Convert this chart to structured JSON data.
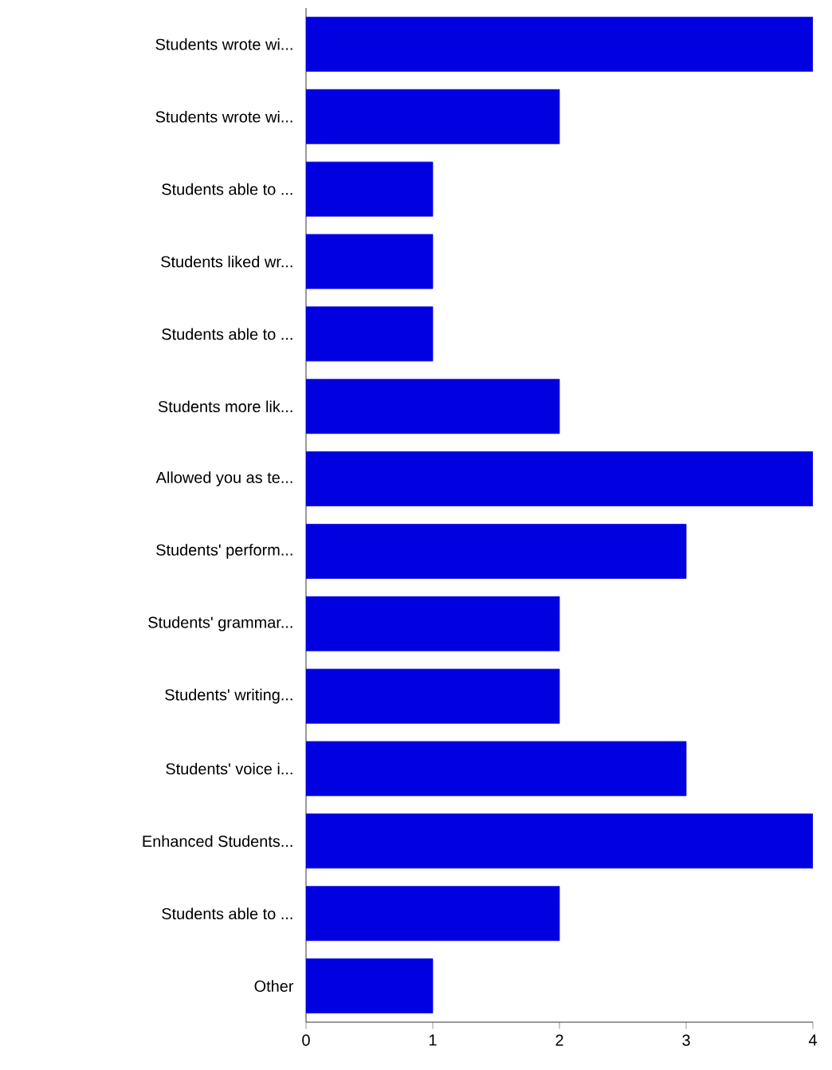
{
  "chart_data": {
    "type": "bar",
    "orientation": "horizontal",
    "categories": [
      "Students wrote wi...",
      "Students wrote wi...",
      "Students able to ...",
      "Students liked wr...",
      "Students able to ...",
      "Students more lik...",
      "Allowed you as te...",
      "Students' perform...",
      "Students' grammar...",
      "Students' writing...",
      "Students' voice i...",
      "Enhanced Students...",
      "Students able to ...",
      "Other"
    ],
    "values": [
      4,
      2,
      1,
      1,
      1,
      2,
      4,
      3,
      2,
      2,
      3,
      4,
      2,
      1
    ],
    "color": "#0000e0",
    "xlim": [
      0,
      4
    ],
    "xticks": [
      0,
      1,
      2,
      3,
      4
    ]
  }
}
